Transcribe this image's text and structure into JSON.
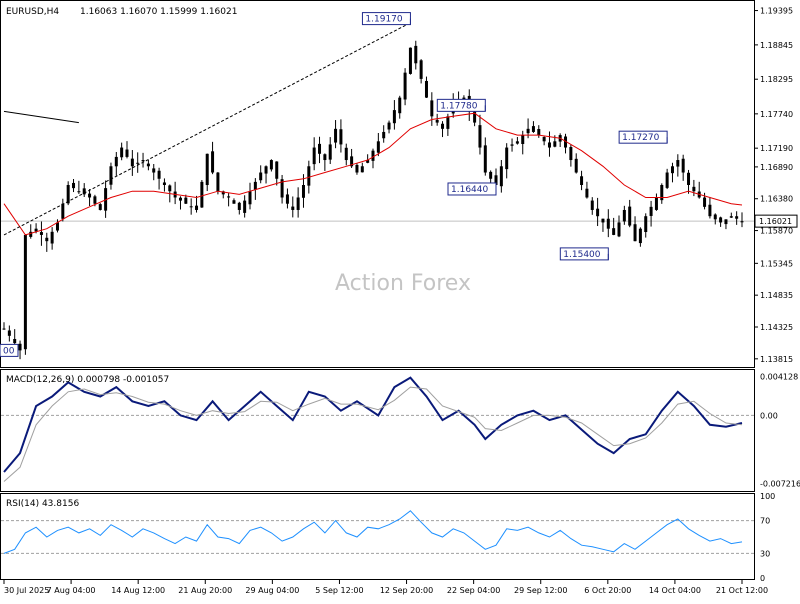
{
  "header": {
    "symbol": "EURUSD,H4",
    "ohlc": "1.16063 1.16070 1.15999 1.16021"
  },
  "watermark": "Action Forex",
  "chart_data": [
    {
      "type": "candlestick",
      "title": "EURUSD,H4",
      "ylim": [
        1.137,
        1.195
      ],
      "y_ticks": [
        "1.19395",
        "1.18845",
        "1.18295",
        "1.17740",
        "1.17190",
        "1.16890",
        "1.16380",
        "1.15870",
        "1.15345",
        "1.14835",
        "1.14325",
        "1.13815"
      ],
      "current_price": "1.16021",
      "x_ticks": [
        "30 Jul 2025",
        "7 Aug 04:00",
        "14 Aug 12:00",
        "21 Aug 20:00",
        "29 Aug 04:00",
        "5 Sep 12:00",
        "12 Sep 20:00",
        "22 Sep 04:00",
        "29 Sep 12:00",
        "6 Oct 20:00",
        "14 Oct 04:00",
        "21 Oct 12:00"
      ],
      "annotations": [
        {
          "label": "1.19170",
          "bar": 76,
          "value": 1.1917
        },
        {
          "label": "1.17780",
          "bar": 90,
          "value": 1.1778
        },
        {
          "label": "1.16440",
          "bar": 92,
          "value": 1.1644
        },
        {
          "label": "1.15400",
          "bar": 113,
          "value": 1.154
        },
        {
          "label": "1.17270",
          "bar": 124,
          "value": 1.1727
        },
        {
          "label": "00",
          "bar": 2,
          "value": 1.1395
        }
      ],
      "close_path": [
        [
          0,
          1.143
        ],
        [
          3,
          1.1395
        ],
        [
          4,
          1.158
        ],
        [
          6,
          1.159
        ],
        [
          8,
          1.157
        ],
        [
          10,
          1.16
        ],
        [
          12,
          1.166
        ],
        [
          14,
          1.165
        ],
        [
          16,
          1.164
        ],
        [
          18,
          1.162
        ],
        [
          20,
          1.169
        ],
        [
          22,
          1.172
        ],
        [
          24,
          1.169
        ],
        [
          26,
          1.17
        ],
        [
          28,
          1.168
        ],
        [
          30,
          1.166
        ],
        [
          32,
          1.164
        ],
        [
          34,
          1.163
        ],
        [
          36,
          1.162
        ],
        [
          38,
          1.171
        ],
        [
          40,
          1.165
        ],
        [
          42,
          1.164
        ],
        [
          44,
          1.162
        ],
        [
          46,
          1.165
        ],
        [
          48,
          1.168
        ],
        [
          50,
          1.17
        ],
        [
          52,
          1.164
        ],
        [
          54,
          1.162
        ],
        [
          56,
          1.166
        ],
        [
          58,
          1.172
        ],
        [
          60,
          1.17
        ],
        [
          62,
          1.175
        ],
        [
          64,
          1.17
        ],
        [
          66,
          1.168
        ],
        [
          68,
          1.17
        ],
        [
          70,
          1.173
        ],
        [
          72,
          1.176
        ],
        [
          74,
          1.18
        ],
        [
          76,
          1.188
        ],
        [
          78,
          1.183
        ],
        [
          80,
          1.177
        ],
        [
          82,
          1.175
        ],
        [
          84,
          1.179
        ],
        [
          86,
          1.18
        ],
        [
          88,
          1.176
        ],
        [
          90,
          1.168
        ],
        [
          92,
          1.166
        ],
        [
          94,
          1.172
        ],
        [
          96,
          1.173
        ],
        [
          98,
          1.175
        ],
        [
          100,
          1.174
        ],
        [
          102,
          1.172
        ],
        [
          104,
          1.174
        ],
        [
          106,
          1.17
        ],
        [
          108,
          1.166
        ],
        [
          110,
          1.162
        ],
        [
          112,
          1.16
        ],
        [
          114,
          1.158
        ],
        [
          116,
          1.162
        ],
        [
          118,
          1.157
        ],
        [
          120,
          1.161
        ],
        [
          122,
          1.164
        ],
        [
          124,
          1.168
        ],
        [
          126,
          1.17
        ],
        [
          128,
          1.166
        ],
        [
          130,
          1.164
        ],
        [
          132,
          1.161
        ],
        [
          134,
          1.16
        ],
        [
          136,
          1.161
        ],
        [
          138,
          1.1602
        ]
      ],
      "ma_path": [
        [
          0,
          1.163
        ],
        [
          4,
          1.158
        ],
        [
          8,
          1.159
        ],
        [
          12,
          1.161
        ],
        [
          16,
          1.1625
        ],
        [
          20,
          1.164
        ],
        [
          24,
          1.165
        ],
        [
          28,
          1.165
        ],
        [
          32,
          1.1645
        ],
        [
          36,
          1.164
        ],
        [
          40,
          1.165
        ],
        [
          44,
          1.1645
        ],
        [
          48,
          1.1655
        ],
        [
          52,
          1.1665
        ],
        [
          56,
          1.167
        ],
        [
          60,
          1.168
        ],
        [
          64,
          1.169
        ],
        [
          68,
          1.17
        ],
        [
          72,
          1.172
        ],
        [
          76,
          1.175
        ],
        [
          80,
          1.1765
        ],
        [
          84,
          1.177
        ],
        [
          88,
          1.1775
        ],
        [
          92,
          1.175
        ],
        [
          96,
          1.174
        ],
        [
          100,
          1.174
        ],
        [
          104,
          1.1735
        ],
        [
          108,
          1.1715
        ],
        [
          112,
          1.169
        ],
        [
          116,
          1.166
        ],
        [
          120,
          1.164
        ],
        [
          124,
          1.164
        ],
        [
          128,
          1.165
        ],
        [
          132,
          1.164
        ],
        [
          136,
          1.163
        ],
        [
          138,
          1.1628
        ]
      ],
      "trendline": {
        "from": [
          0,
          1.158
        ],
        "to": [
          76,
          1.192
        ]
      },
      "short_line": {
        "from": [
          0,
          1.1778
        ],
        "to": [
          14,
          1.176
        ]
      }
    },
    {
      "type": "line",
      "title": "MACD(12,26,9) 0.000798 -0.001057",
      "y_ticks": [
        "0.004128",
        "0.00",
        "-0.007216"
      ],
      "ylim": [
        -0.0078,
        0.0046
      ],
      "series": [
        {
          "name": "MACD",
          "points": [
            [
              0,
              -0.006
            ],
            [
              3,
              -0.004
            ],
            [
              6,
              0.001
            ],
            [
              9,
              0.002
            ],
            [
              12,
              0.0035
            ],
            [
              15,
              0.0025
            ],
            [
              18,
              0.002
            ],
            [
              21,
              0.003
            ],
            [
              24,
              0.0015
            ],
            [
              27,
              0.001
            ],
            [
              30,
              0.0015
            ],
            [
              33,
              0.0
            ],
            [
              36,
              -0.0005
            ],
            [
              39,
              0.0015
            ],
            [
              42,
              -0.0005
            ],
            [
              45,
              0.001
            ],
            [
              48,
              0.0025
            ],
            [
              51,
              0.001
            ],
            [
              54,
              -0.0005
            ],
            [
              57,
              0.0025
            ],
            [
              60,
              0.002
            ],
            [
              63,
              0.0005
            ],
            [
              66,
              0.0015
            ],
            [
              70,
              0.0
            ],
            [
              73,
              0.003
            ],
            [
              76,
              0.004
            ],
            [
              79,
              0.002
            ],
            [
              82,
              -0.0005
            ],
            [
              85,
              0.0005
            ],
            [
              88,
              -0.001
            ],
            [
              90,
              -0.0025
            ],
            [
              93,
              -0.001
            ],
            [
              96,
              0.0
            ],
            [
              99,
              0.0005
            ],
            [
              102,
              -0.0005
            ],
            [
              105,
              0.0
            ],
            [
              108,
              -0.0015
            ],
            [
              111,
              -0.003
            ],
            [
              114,
              -0.004
            ],
            [
              117,
              -0.0025
            ],
            [
              120,
              -0.002
            ],
            [
              123,
              0.0005
            ],
            [
              126,
              0.0025
            ],
            [
              129,
              0.001
            ],
            [
              132,
              -0.001
            ],
            [
              135,
              -0.0012
            ],
            [
              138,
              -0.0008
            ]
          ]
        },
        {
          "name": "Signal",
          "points": [
            [
              0,
              -0.007
            ],
            [
              3,
              -0.0055
            ],
            [
              6,
              -0.001
            ],
            [
              9,
              0.001
            ],
            [
              12,
              0.0025
            ],
            [
              15,
              0.0028
            ],
            [
              18,
              0.0022
            ],
            [
              21,
              0.0024
            ],
            [
              24,
              0.002
            ],
            [
              27,
              0.0014
            ],
            [
              30,
              0.0012
            ],
            [
              33,
              0.0005
            ],
            [
              36,
              0.0
            ],
            [
              39,
              0.0005
            ],
            [
              42,
              0.0002
            ],
            [
              45,
              0.0004
            ],
            [
              48,
              0.0015
            ],
            [
              51,
              0.0014
            ],
            [
              54,
              0.0005
            ],
            [
              57,
              0.0012
            ],
            [
              60,
              0.0018
            ],
            [
              63,
              0.0012
            ],
            [
              66,
              0.0012
            ],
            [
              70,
              0.0006
            ],
            [
              73,
              0.0016
            ],
            [
              76,
              0.003
            ],
            [
              79,
              0.0028
            ],
            [
              82,
              0.001
            ],
            [
              85,
              0.0004
            ],
            [
              88,
              -0.0002
            ],
            [
              90,
              -0.0014
            ],
            [
              93,
              -0.0016
            ],
            [
              96,
              -0.0008
            ],
            [
              99,
              0.0
            ],
            [
              102,
              0.0
            ],
            [
              105,
              -0.0002
            ],
            [
              108,
              -0.0008
            ],
            [
              111,
              -0.002
            ],
            [
              114,
              -0.0032
            ],
            [
              117,
              -0.003
            ],
            [
              120,
              -0.0024
            ],
            [
              123,
              -0.0008
            ],
            [
              126,
              0.0012
            ],
            [
              129,
              0.0015
            ],
            [
              132,
              0.0002
            ],
            [
              135,
              -0.0008
            ],
            [
              138,
              -0.001
            ]
          ]
        }
      ]
    },
    {
      "type": "line",
      "title": "RSI(14) 43.8156",
      "y_ticks": [
        "100",
        "70",
        "30",
        "0"
      ],
      "ylim": [
        0,
        100
      ],
      "series": [
        {
          "name": "RSI",
          "points": [
            [
              0,
              30
            ],
            [
              2,
              35
            ],
            [
              4,
              55
            ],
            [
              6,
              62
            ],
            [
              8,
              50
            ],
            [
              10,
              58
            ],
            [
              12,
              62
            ],
            [
              14,
              55
            ],
            [
              16,
              60
            ],
            [
              18,
              52
            ],
            [
              20,
              65
            ],
            [
              22,
              58
            ],
            [
              24,
              50
            ],
            [
              26,
              60
            ],
            [
              28,
              55
            ],
            [
              30,
              48
            ],
            [
              32,
              42
            ],
            [
              34,
              50
            ],
            [
              36,
              45
            ],
            [
              38,
              65
            ],
            [
              40,
              50
            ],
            [
              42,
              48
            ],
            [
              44,
              42
            ],
            [
              46,
              58
            ],
            [
              48,
              62
            ],
            [
              50,
              55
            ],
            [
              52,
              45
            ],
            [
              54,
              50
            ],
            [
              56,
              60
            ],
            [
              58,
              68
            ],
            [
              60,
              55
            ],
            [
              62,
              70
            ],
            [
              64,
              55
            ],
            [
              66,
              50
            ],
            [
              68,
              62
            ],
            [
              70,
              60
            ],
            [
              72,
              65
            ],
            [
              74,
              72
            ],
            [
              76,
              82
            ],
            [
              78,
              68
            ],
            [
              80,
              55
            ],
            [
              82,
              50
            ],
            [
              84,
              60
            ],
            [
              86,
              55
            ],
            [
              88,
              45
            ],
            [
              90,
              35
            ],
            [
              92,
              40
            ],
            [
              94,
              60
            ],
            [
              96,
              58
            ],
            [
              98,
              62
            ],
            [
              100,
              55
            ],
            [
              102,
              50
            ],
            [
              104,
              58
            ],
            [
              106,
              48
            ],
            [
              108,
              40
            ],
            [
              110,
              38
            ],
            [
              112,
              35
            ],
            [
              114,
              32
            ],
            [
              116,
              42
            ],
            [
              118,
              35
            ],
            [
              120,
              45
            ],
            [
              122,
              55
            ],
            [
              124,
              65
            ],
            [
              126,
              72
            ],
            [
              128,
              60
            ],
            [
              130,
              52
            ],
            [
              132,
              45
            ],
            [
              134,
              48
            ],
            [
              136,
              42
            ],
            [
              138,
              44
            ]
          ]
        }
      ]
    }
  ]
}
